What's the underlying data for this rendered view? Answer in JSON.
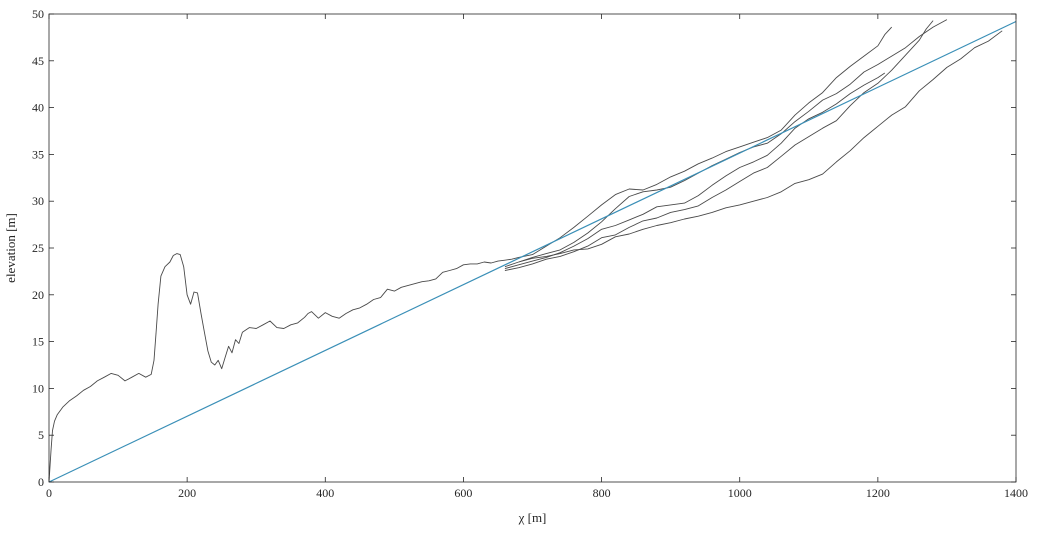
{
  "chart_data": {
    "type": "line",
    "title": "",
    "xlabel": "χ [m]",
    "ylabel": "elevation [m]",
    "xlim": [
      0,
      1400
    ],
    "ylim": [
      0,
      50
    ],
    "xticks": [
      0,
      200,
      400,
      600,
      800,
      1000,
      1200,
      1400
    ],
    "yticks": [
      0,
      5,
      10,
      15,
      20,
      25,
      30,
      35,
      40,
      45,
      50
    ],
    "xtick_labels": [
      "0",
      "200",
      "400",
      "600",
      "800",
      "1000",
      "1200",
      "1400"
    ],
    "ytick_labels": [
      "0",
      "5",
      "10",
      "15",
      "20",
      "25",
      "30",
      "35",
      "40",
      "45",
      "50"
    ],
    "grid": false,
    "legend": "none",
    "colors": {
      "profile": "#4a4a4a",
      "fit": "#3a8fb7",
      "axis": "#262626"
    },
    "series": [
      {
        "x": [
          0,
          3,
          5,
          8,
          12,
          20,
          30,
          40,
          50,
          60,
          70,
          80,
          90,
          100,
          110,
          120,
          130,
          140,
          148,
          152,
          155,
          158,
          162,
          168,
          175,
          180,
          185,
          190,
          195,
          200,
          205,
          210,
          215,
          220,
          225,
          230,
          235,
          240,
          245,
          250,
          255,
          260,
          265,
          270,
          275,
          280,
          290,
          300,
          310,
          320,
          330,
          340,
          350,
          360,
          370,
          375,
          380,
          390,
          400,
          410,
          420,
          430,
          440,
          450,
          460,
          470,
          480,
          490,
          500,
          510,
          520,
          530,
          540,
          550,
          560,
          570,
          580,
          590,
          600,
          610,
          620,
          630,
          640,
          650,
          660,
          670,
          680,
          700,
          720,
          740,
          760,
          780,
          800,
          820,
          840,
          860,
          880,
          900,
          920,
          940,
          960,
          980,
          1000,
          1020,
          1040,
          1060,
          1080,
          1100,
          1120,
          1140,
          1160,
          1180,
          1200,
          1210,
          1220
        ],
        "y": [
          0,
          3.5,
          5.5,
          6.5,
          7.2,
          8,
          8.7,
          9.2,
          9.8,
          10.2,
          10.8,
          11.2,
          11.6,
          11.4,
          10.8,
          11.2,
          11.6,
          11.2,
          11.5,
          13,
          16,
          19,
          22,
          23,
          23.5,
          24.2,
          24.4,
          24.3,
          23,
          20,
          19,
          20.3,
          20.2,
          18,
          16,
          14,
          12.8,
          12.5,
          13,
          12.1,
          13.3,
          14.5,
          13.8,
          15.2,
          14.8,
          16,
          16.5,
          16.4,
          16.8,
          17.2,
          16.5,
          16.4,
          16.8,
          17,
          17.6,
          18,
          18.2,
          17.5,
          18.1,
          17.7,
          17.5,
          18,
          18.4,
          18.6,
          19,
          19.5,
          19.7,
          20.6,
          20.4,
          20.8,
          21,
          21.2,
          21.4,
          21.5,
          21.7,
          22.4,
          22.6,
          22.8,
          23.2,
          23.3,
          23.3,
          23.5,
          23.4,
          23.6,
          23.7,
          23.8,
          24,
          24.3,
          25.2,
          26.1,
          27.2,
          28.4,
          29.6,
          30.7,
          31.3,
          31.2,
          31.8,
          32.6,
          33.2,
          34,
          34.6,
          35.3,
          35.8,
          36.3,
          36.8,
          37.6,
          39.2,
          40.5,
          41.6,
          43.2,
          44.4,
          45.5,
          46.6,
          47.8,
          48.6
        ]
      },
      {
        "x": [
          660,
          680,
          700,
          720,
          740,
          760,
          780,
          800,
          820,
          840,
          860,
          880,
          900,
          920,
          940,
          960,
          980,
          1000,
          1020,
          1040,
          1060,
          1080,
          1100,
          1120,
          1140,
          1160,
          1180,
          1200,
          1220,
          1240,
          1260,
          1280,
          1300
        ],
        "y": [
          23,
          23.5,
          24,
          24.4,
          24.8,
          25.6,
          26.6,
          27.8,
          29.2,
          30.5,
          31,
          31.2,
          31.5,
          32.2,
          33,
          33.8,
          34.5,
          35.2,
          35.8,
          36.2,
          37.2,
          38.5,
          39.6,
          40.8,
          41.5,
          42.5,
          43.8,
          44.6,
          45.5,
          46.4,
          47.6,
          48.6,
          49.4
        ]
      },
      {
        "x": [
          660,
          680,
          700,
          720,
          740,
          760,
          780,
          800,
          820,
          840,
          860,
          880,
          900,
          920,
          940,
          960,
          980,
          1000,
          1020,
          1040,
          1060,
          1080,
          1100,
          1120,
          1140,
          1160,
          1180,
          1200,
          1220,
          1240,
          1260,
          1270,
          1280
        ],
        "y": [
          22.6,
          22.9,
          23.3,
          23.8,
          24.1,
          24.6,
          25.2,
          26.1,
          26.4,
          27.2,
          27.9,
          28.2,
          28.8,
          29.1,
          29.5,
          30.4,
          31.2,
          32.1,
          33,
          33.6,
          34.8,
          36,
          36.9,
          37.8,
          38.6,
          40.2,
          41.6,
          42.6,
          44,
          45.6,
          47.2,
          48.4,
          49.3
        ]
      },
      {
        "x": [
          660,
          680,
          700,
          720,
          740,
          760,
          780,
          800,
          820,
          840,
          860,
          880,
          900,
          920,
          940,
          960,
          980,
          1000,
          1020,
          1040,
          1060,
          1080,
          1100,
          1120,
          1140,
          1160,
          1180,
          1200,
          1210
        ],
        "y": [
          22.8,
          23.2,
          23.6,
          24,
          24.5,
          25.2,
          26,
          27,
          27.4,
          28,
          28.6,
          29.4,
          29.6,
          29.8,
          30.6,
          31.7,
          32.7,
          33.6,
          34.2,
          34.9,
          36.2,
          37.8,
          38.8,
          39.5,
          40.4,
          41.5,
          42.4,
          43.2,
          43.7
        ]
      },
      {
        "x": [
          680,
          700,
          720,
          740,
          760,
          780,
          800,
          820,
          840,
          860,
          880,
          900,
          920,
          940,
          960,
          980,
          1000,
          1020,
          1040,
          1060,
          1080,
          1100,
          1120,
          1140,
          1160,
          1180,
          1200,
          1220,
          1240,
          1260,
          1280,
          1300,
          1320,
          1340,
          1360,
          1380
        ],
        "y": [
          23.5,
          23.9,
          24.1,
          24.4,
          24.8,
          24.9,
          25.4,
          26.2,
          26.5,
          27,
          27.4,
          27.7,
          28.1,
          28.4,
          28.8,
          29.3,
          29.6,
          30,
          30.4,
          31,
          31.9,
          32.3,
          32.9,
          34.2,
          35.4,
          36.8,
          38,
          39.2,
          40.1,
          41.8,
          43,
          44.3,
          45.2,
          46.4,
          47.1,
          48.2
        ]
      },
      {
        "x": [
          0,
          1400
        ],
        "y": [
          0,
          49.2
        ]
      }
    ]
  }
}
